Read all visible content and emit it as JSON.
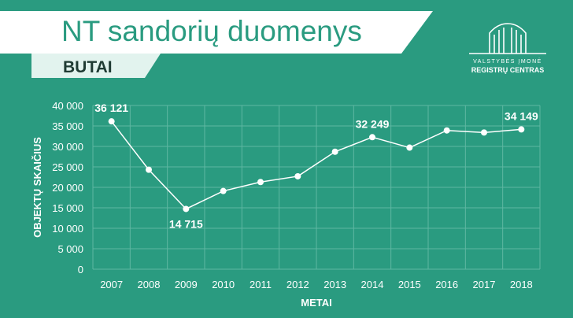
{
  "header": {
    "title": "NT sandorių duomenys",
    "subtitle": "BUTAI"
  },
  "logo": {
    "line1": "VALSTYBĖS ĮMONĖ",
    "line2": "REGISTRŲ CENTRAS"
  },
  "colors": {
    "background": "#2a9b80",
    "grid": "#5fb7a2",
    "line": "#ffffff",
    "title_text": "#2a9b80",
    "subtitle_text": "#1f3b33"
  },
  "chart_data": {
    "type": "line",
    "xlabel": "METAI",
    "ylabel": "OBJEKTŲ SKAIČIUS",
    "ylim": [
      0,
      40000
    ],
    "grid": true,
    "categories": [
      "2007",
      "2008",
      "2009",
      "2010",
      "2011",
      "2012",
      "2013",
      "2014",
      "2015",
      "2016",
      "2017",
      "2018"
    ],
    "yticks": [
      "0",
      "5 000",
      "10 000",
      "15 000",
      "20 000",
      "25 000",
      "30 000",
      "35 000",
      "40 000"
    ],
    "series": [
      {
        "values": [
          36121,
          24300,
          14715,
          19100,
          21300,
          22700,
          28700,
          32249,
          29700,
          33900,
          33400,
          34149
        ]
      }
    ],
    "data_labels": [
      {
        "index": 0,
        "text": "36 121",
        "position": "above"
      },
      {
        "index": 2,
        "text": "14 715",
        "position": "below"
      },
      {
        "index": 7,
        "text": "32 249",
        "position": "above"
      },
      {
        "index": 11,
        "text": "34 149",
        "position": "above"
      }
    ]
  }
}
